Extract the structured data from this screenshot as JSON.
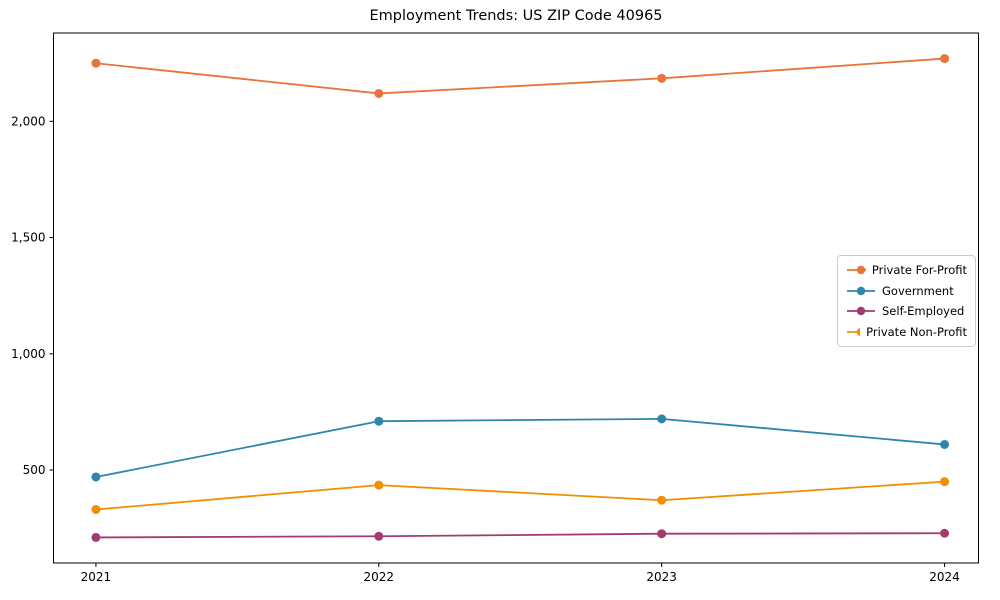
{
  "chart_data": {
    "type": "line",
    "title": "Employment Trends: US ZIP Code 40965",
    "xlabel": "",
    "ylabel": "",
    "x": [
      2021,
      2022,
      2023,
      2024
    ],
    "x_tick_labels": [
      "2021",
      "2022",
      "2023",
      "2024"
    ],
    "y_tick_values": [
      500,
      1000,
      1500,
      2000
    ],
    "y_tick_labels": [
      "500",
      "1,000",
      "1,500",
      "2,000"
    ],
    "xlim": [
      2020.85,
      2024.12
    ],
    "ylim": [
      100,
      2380
    ],
    "grid": false,
    "legend_position": "center right",
    "marker": "circle",
    "series": [
      {
        "name": "Private For-Profit",
        "color": "#e8743b",
        "values": [
          2250,
          2120,
          2185,
          2270
        ]
      },
      {
        "name": "Government",
        "color": "#2e86ab",
        "values": [
          470,
          710,
          720,
          610
        ]
      },
      {
        "name": "Self-Employed",
        "color": "#a23b72",
        "values": [
          210,
          215,
          226,
          228
        ]
      },
      {
        "name": "Private Non-Profit",
        "color": "#f18f01",
        "values": [
          330,
          435,
          370,
          450
        ]
      }
    ]
  }
}
